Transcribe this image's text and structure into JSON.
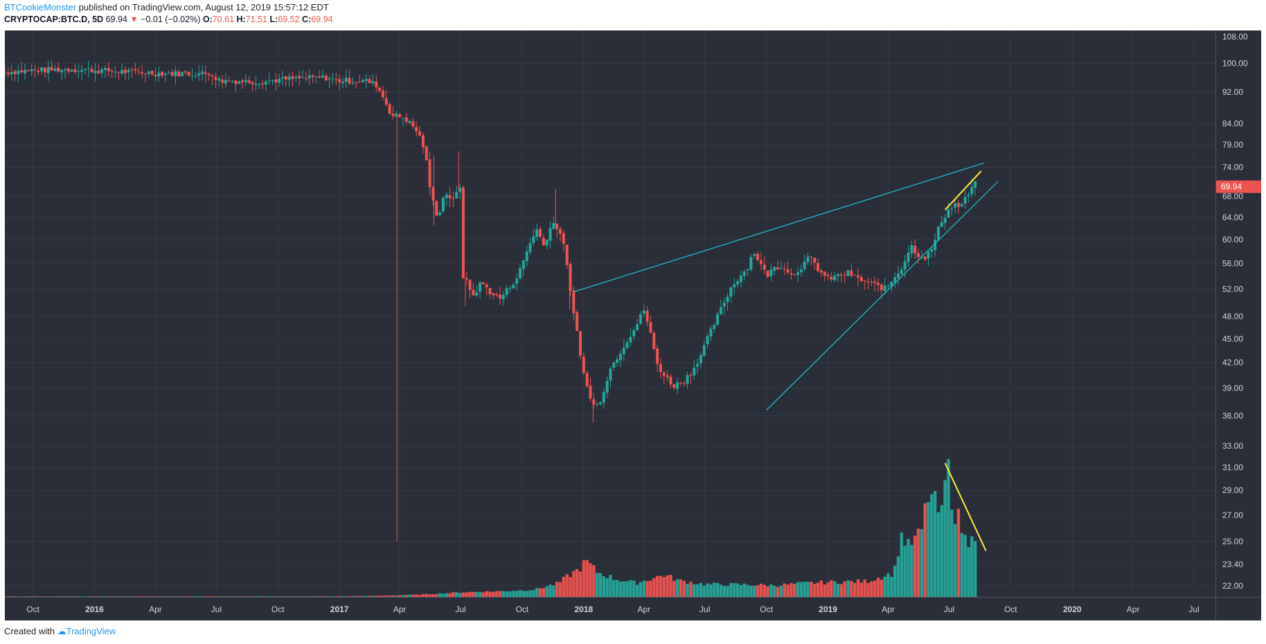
{
  "header": {
    "author": "BTCookieMonster",
    "published_text": "published on TradingView.com, August 12, 2019 15:57:12 EDT",
    "symbol": "CRYPTOCAP:BTC.D, 5D",
    "last": "69.94",
    "change": "−0.01 (−0.02%)",
    "o_label": "O:",
    "o_value": "70.61",
    "h_label": "H:",
    "h_value": "71.51",
    "l_label": "L:",
    "l_value": "69.52",
    "c_label": "C:",
    "c_value": "69.94"
  },
  "footer": {
    "created_with": "Created with",
    "brand": "TradingView"
  },
  "colors": {
    "background": "#2a2e39",
    "up": "#26a69a",
    "down": "#ef5350",
    "trendline": "#1fc6d6",
    "highlight": "#ffeb3b",
    "grid": "#363a45"
  },
  "chart_data": {
    "type": "candlestick",
    "symbol": "CRYPTOCAP:BTC.D",
    "interval": "5D",
    "y_scale": "log",
    "ylim": [
      21.3,
      110
    ],
    "y_ticks": [
      108.0,
      100.0,
      92.0,
      84.0,
      79.0,
      74.0,
      68.0,
      64.0,
      60.0,
      56.0,
      52.0,
      48.0,
      45.0,
      42.0,
      39.0,
      36.0,
      33.0,
      31.0,
      29.0,
      27.0,
      25.0,
      23.4,
      22.0
    ],
    "y_tick_labels": [
      "108.00",
      "100.00",
      "92.00",
      "84.00",
      "79.00",
      "74.00",
      "68.00",
      "64.00",
      "60.00",
      "56.00",
      "52.00",
      "48.00",
      "45.00",
      "42.00",
      "39.00",
      "36.00",
      "33.00",
      "31.00",
      "29.00",
      "27.00",
      "25.00",
      "23.40",
      "22.00"
    ],
    "x_range": [
      "2015-08-20",
      "2020-08-02"
    ],
    "x_ticks": [
      {
        "date": "2015-10-01",
        "label": "Oct"
      },
      {
        "date": "2016-01-01",
        "label": "2016",
        "bold": true
      },
      {
        "date": "2016-04-01",
        "label": "Apr"
      },
      {
        "date": "2016-07-01",
        "label": "Jul"
      },
      {
        "date": "2016-10-01",
        "label": "Oct"
      },
      {
        "date": "2017-01-01",
        "label": "2017",
        "bold": true
      },
      {
        "date": "2017-04-01",
        "label": "Apr"
      },
      {
        "date": "2017-07-01",
        "label": "Jul"
      },
      {
        "date": "2017-10-01",
        "label": "Oct"
      },
      {
        "date": "2018-01-01",
        "label": "2018",
        "bold": true
      },
      {
        "date": "2018-04-01",
        "label": "Apr"
      },
      {
        "date": "2018-07-01",
        "label": "Jul"
      },
      {
        "date": "2018-10-01",
        "label": "Oct"
      },
      {
        "date": "2019-01-01",
        "label": "2019",
        "bold": true
      },
      {
        "date": "2019-04-01",
        "label": "Apr"
      },
      {
        "date": "2019-07-01",
        "label": "Jul"
      },
      {
        "date": "2019-10-01",
        "label": "Oct"
      },
      {
        "date": "2020-01-01",
        "label": "2020",
        "bold": true
      },
      {
        "date": "2020-04-01",
        "label": "Apr"
      },
      {
        "date": "2020-07-01",
        "label": "Jul"
      }
    ],
    "close_anchors": [
      [
        "2015-08-20",
        97.5
      ],
      [
        "2015-10-01",
        98.0
      ],
      [
        "2015-12-01",
        98.3
      ],
      [
        "2016-02-15",
        97.6
      ],
      [
        "2016-04-01",
        97.2
      ],
      [
        "2016-06-28",
        97.0
      ],
      [
        "2016-07-01",
        95.2
      ],
      [
        "2016-09-01",
        94.8
      ],
      [
        "2016-10-20",
        95.6
      ],
      [
        "2016-12-15",
        96.0
      ],
      [
        "2016-12-25",
        95.2
      ],
      [
        "2017-02-10",
        95.0
      ],
      [
        "2017-02-25",
        94.0
      ],
      [
        "2017-03-08",
        90.5
      ],
      [
        "2017-03-20",
        86.0
      ],
      [
        "2017-04-08",
        85.5
      ],
      [
        "2017-04-28",
        82.0
      ],
      [
        "2017-05-08",
        78.0
      ],
      [
        "2017-05-18",
        68.0
      ],
      [
        "2017-05-28",
        64.0
      ],
      [
        "2017-06-08",
        69.0
      ],
      [
        "2017-06-20",
        67.0
      ],
      [
        "2017-06-30",
        70.0
      ],
      [
        "2017-07-05",
        54.0
      ],
      [
        "2017-07-20",
        51.0
      ],
      [
        "2017-08-01",
        53.0
      ],
      [
        "2017-08-15",
        51.5
      ],
      [
        "2017-08-28",
        50.5
      ],
      [
        "2017-09-10",
        52.0
      ],
      [
        "2017-09-25",
        54.0
      ],
      [
        "2017-10-08",
        58.0
      ],
      [
        "2017-10-22",
        62.0
      ],
      [
        "2017-11-02",
        59.0
      ],
      [
        "2017-11-15",
        63.0
      ],
      [
        "2017-11-25",
        62.0
      ],
      [
        "2017-12-06",
        57.0
      ],
      [
        "2017-12-14",
        49.5
      ],
      [
        "2017-12-22",
        46.0
      ],
      [
        "2017-12-31",
        41.0
      ],
      [
        "2018-01-08",
        38.5
      ],
      [
        "2018-01-18",
        36.8
      ],
      [
        "2018-01-28",
        38.0
      ],
      [
        "2018-02-08",
        41.0
      ],
      [
        "2018-02-22",
        43.0
      ],
      [
        "2018-03-08",
        45.0
      ],
      [
        "2018-03-22",
        47.0
      ],
      [
        "2018-04-01",
        49.0
      ],
      [
        "2018-04-10",
        46.0
      ],
      [
        "2018-04-20",
        42.0
      ],
      [
        "2018-05-01",
        40.5
      ],
      [
        "2018-05-15",
        39.3
      ],
      [
        "2018-05-30",
        39.8
      ],
      [
        "2018-06-12",
        41.0
      ],
      [
        "2018-06-25",
        43.0
      ],
      [
        "2018-07-10",
        46.0
      ],
      [
        "2018-07-25",
        49.0
      ],
      [
        "2018-08-08",
        52.0
      ],
      [
        "2018-08-22",
        54.0
      ],
      [
        "2018-09-01",
        55.0
      ],
      [
        "2018-09-12",
        58.0
      ],
      [
        "2018-09-22",
        56.0
      ],
      [
        "2018-10-01",
        54.0
      ],
      [
        "2018-10-15",
        55.5
      ],
      [
        "2018-10-28",
        55.5
      ],
      [
        "2018-11-08",
        54.0
      ],
      [
        "2018-11-22",
        55.5
      ],
      [
        "2018-12-05",
        57.0
      ],
      [
        "2018-12-18",
        55.0
      ],
      [
        "2018-12-31",
        53.5
      ],
      [
        "2019-01-15",
        54.0
      ],
      [
        "2019-02-01",
        54.5
      ],
      [
        "2019-02-15",
        53.5
      ],
      [
        "2019-03-01",
        53.0
      ],
      [
        "2019-03-15",
        52.5
      ],
      [
        "2019-03-28",
        52.0
      ],
      [
        "2019-04-08",
        53.5
      ],
      [
        "2019-04-22",
        55.5
      ],
      [
        "2019-05-05",
        59.0
      ],
      [
        "2019-05-15",
        57.5
      ],
      [
        "2019-05-28",
        57.0
      ],
      [
        "2019-06-08",
        59.0
      ],
      [
        "2019-06-18",
        63.0
      ],
      [
        "2019-06-28",
        65.0
      ],
      [
        "2019-07-08",
        66.5
      ],
      [
        "2019-07-18",
        66.0
      ],
      [
        "2019-07-28",
        68.0
      ],
      [
        "2019-08-08",
        70.6
      ],
      [
        "2019-08-12",
        69.94
      ]
    ],
    "spikes": [
      {
        "date": "2017-03-28",
        "low": 25.0
      },
      {
        "date": "2017-05-22",
        "high": 76.5,
        "low": 62.5
      },
      {
        "date": "2017-06-28",
        "high": 77.5
      },
      {
        "date": "2017-07-08",
        "low": 49.5
      },
      {
        "date": "2017-11-20",
        "high": 69.5
      },
      {
        "date": "2017-12-11",
        "low": 49.0
      },
      {
        "date": "2018-01-15",
        "low": 35.3
      }
    ],
    "volume_anchors": [
      [
        "2015-08-20",
        0.2
      ],
      [
        "2016-12-31",
        0.3
      ],
      [
        "2017-03-01",
        0.5
      ],
      [
        "2017-05-01",
        1.0
      ],
      [
        "2017-07-01",
        2.0
      ],
      [
        "2017-09-01",
        2.5
      ],
      [
        "2017-10-20",
        3.2
      ],
      [
        "2017-11-25",
        6.0
      ],
      [
        "2017-12-08",
        9.0
      ],
      [
        "2017-12-25",
        12.0
      ],
      [
        "2018-01-05",
        15.5
      ],
      [
        "2018-01-20",
        11.0
      ],
      [
        "2018-02-15",
        8.0
      ],
      [
        "2018-03-20",
        6.0
      ],
      [
        "2018-05-01",
        9.5
      ],
      [
        "2018-05-25",
        7.0
      ],
      [
        "2018-07-01",
        5.5
      ],
      [
        "2018-09-01",
        5.3
      ],
      [
        "2018-10-15",
        5.0
      ],
      [
        "2018-12-01",
        6.0
      ],
      [
        "2019-01-15",
        6.5
      ],
      [
        "2019-03-01",
        6.8
      ],
      [
        "2019-04-10",
        10.5
      ],
      [
        "2019-04-20",
        27.0
      ],
      [
        "2019-05-01",
        22.0
      ],
      [
        "2019-05-20",
        27.5
      ],
      [
        "2019-06-01",
        46.0
      ],
      [
        "2019-06-10",
        40.0
      ],
      [
        "2019-06-20",
        35.0
      ],
      [
        "2019-06-28",
        58.0
      ],
      [
        "2019-07-08",
        38.0
      ],
      [
        "2019-07-18",
        32.0
      ],
      [
        "2019-07-28",
        22.0
      ],
      [
        "2019-08-05",
        32.0
      ],
      [
        "2019-08-12",
        23.0
      ]
    ],
    "volume_scale_max": 60,
    "last_price_label": "69.94",
    "trendlines": [
      {
        "color": "#1fc6d6",
        "from": [
          "2017-12-18",
          51.6
        ],
        "to": [
          "2019-08-22",
          74.9
        ]
      },
      {
        "color": "#1fc6d6",
        "from": [
          "2018-10-01",
          36.6
        ],
        "to": [
          "2019-09-12",
          71.0
        ]
      },
      {
        "color": "#ffeb3b",
        "from": [
          "2019-06-25",
          65.4
        ],
        "to": [
          "2019-08-18",
          73.2
        ]
      }
    ],
    "volume_trendline": {
      "color": "#ffeb3b",
      "from": [
        "2019-06-25",
        58.0
      ],
      "to": [
        "2019-08-25",
        20.0
      ]
    }
  }
}
